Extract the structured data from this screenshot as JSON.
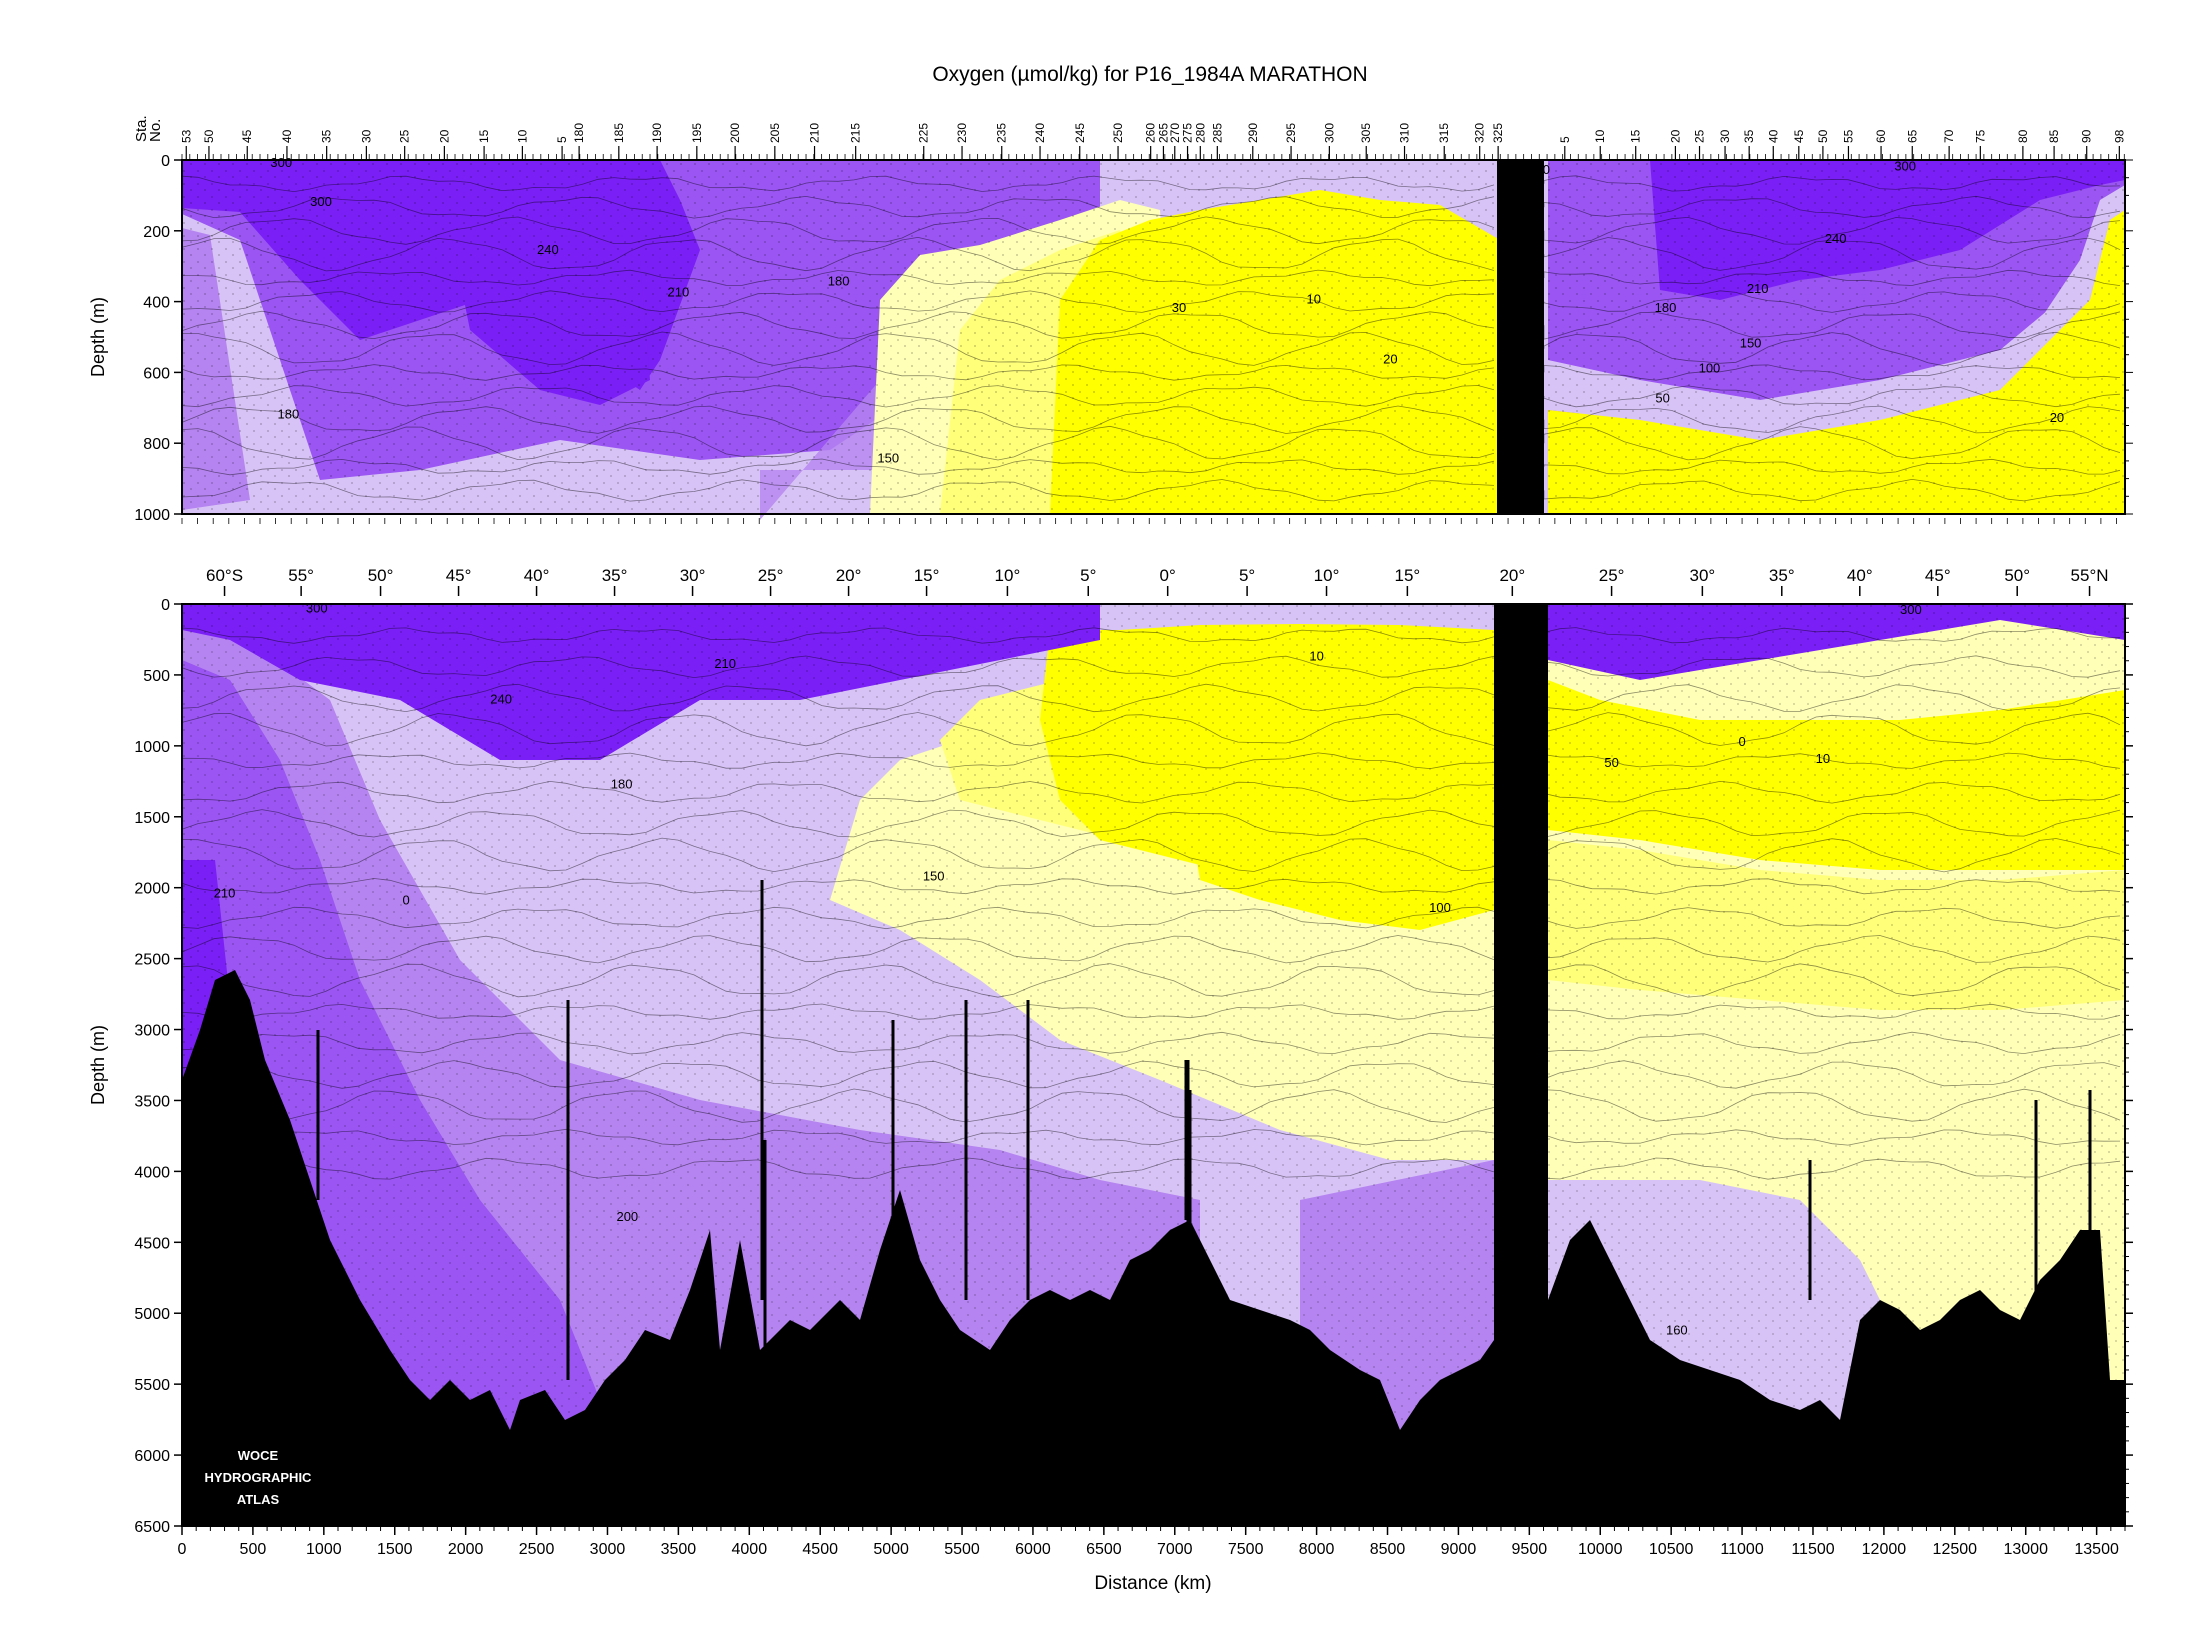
{
  "title": "Oxygen (µmol/kg) for P16_1984A MARATHON",
  "logo_text": [
    "WOCE",
    "HYDROGRAPHIC",
    "ATLAS"
  ],
  "colors": {
    "purple_dark": "#7A1FF5",
    "purple_mid": "#9A55F2",
    "purple_light": "#B584F0",
    "lavender": "#D8C3F6",
    "pale_yellow": "#FFFFB8",
    "light_yellow": "#FFFF7A",
    "yellow": "#FFFF00",
    "seafloor": "#000000"
  },
  "chart_data": [
    {
      "type": "heatmap",
      "panel": "upper",
      "variable": "Oxygen (µmol/kg)",
      "xlabel": "",
      "ylabel": "Depth (m)",
      "xlim": [
        0,
        13700
      ],
      "ylim": [
        1000,
        0
      ],
      "yticks": [
        0,
        200,
        400,
        600,
        800,
        1000
      ],
      "station_axis_label": [
        "Sta.",
        "No."
      ],
      "station_ticks_south": [
        {
          "label": "53",
          "km": 30
        },
        {
          "label": "50",
          "km": 190
        },
        {
          "label": "45",
          "km": 460
        },
        {
          "label": "40",
          "km": 740
        },
        {
          "label": "35",
          "km": 1020
        },
        {
          "label": "30",
          "km": 1300
        },
        {
          "label": "25",
          "km": 1570
        },
        {
          "label": "20",
          "km": 1850
        },
        {
          "label": "15",
          "km": 2130
        },
        {
          "label": "10",
          "km": 2400
        },
        {
          "label": "5",
          "km": 2680
        },
        {
          "label": "180",
          "km": 2800
        },
        {
          "label": "185",
          "km": 3080
        },
        {
          "label": "190",
          "km": 3350
        },
        {
          "label": "195",
          "km": 3630
        },
        {
          "label": "200",
          "km": 3900
        },
        {
          "label": "205",
          "km": 4180
        },
        {
          "label": "210",
          "km": 4460
        },
        {
          "label": "215",
          "km": 4750
        },
        {
          "label": "225",
          "km": 5230
        },
        {
          "label": "230",
          "km": 5500
        },
        {
          "label": "235",
          "km": 5780
        },
        {
          "label": "240",
          "km": 6050
        },
        {
          "label": "245",
          "km": 6330
        },
        {
          "label": "250",
          "km": 6600
        },
        {
          "label": "260",
          "km": 6830
        },
        {
          "label": "265",
          "km": 6920
        },
        {
          "label": "270",
          "km": 7000
        },
        {
          "label": "275",
          "km": 7090
        },
        {
          "label": "280",
          "km": 7180
        },
        {
          "label": "285",
          "km": 7300
        },
        {
          "label": "290",
          "km": 7550
        },
        {
          "label": "295",
          "km": 7820
        },
        {
          "label": "300",
          "km": 8090
        },
        {
          "label": "305",
          "km": 8350
        },
        {
          "label": "310",
          "km": 8620
        },
        {
          "label": "315",
          "km": 8900
        },
        {
          "label": "320",
          "km": 9150
        },
        {
          "label": "325",
          "km": 9280
        }
      ],
      "station_ticks_north": [
        {
          "label": "5",
          "km": 9750
        },
        {
          "label": "10",
          "km": 10000
        },
        {
          "label": "15",
          "km": 10250
        },
        {
          "label": "20",
          "km": 10530
        },
        {
          "label": "25",
          "km": 10700
        },
        {
          "label": "30",
          "km": 10880
        },
        {
          "label": "35",
          "km": 11050
        },
        {
          "label": "40",
          "km": 11220
        },
        {
          "label": "45",
          "km": 11400
        },
        {
          "label": "50",
          "km": 11570
        },
        {
          "label": "55",
          "km": 11750
        },
        {
          "label": "60",
          "km": 11980
        },
        {
          "label": "65",
          "km": 12200
        },
        {
          "label": "70",
          "km": 12460
        },
        {
          "label": "75",
          "km": 12680
        },
        {
          "label": "80",
          "km": 12980
        },
        {
          "label": "85",
          "km": 13200
        },
        {
          "label": "90",
          "km": 13430
        },
        {
          "label": "98",
          "km": 13660
        }
      ],
      "contour_labels": [
        {
          "text": "300",
          "km": 700,
          "depth": 20
        },
        {
          "text": "300",
          "km": 980,
          "depth": 130
        },
        {
          "text": "240",
          "km": 2580,
          "depth": 265
        },
        {
          "text": "210",
          "km": 3500,
          "depth": 385
        },
        {
          "text": "180",
          "km": 4630,
          "depth": 355
        },
        {
          "text": "180",
          "km": 750,
          "depth": 730
        },
        {
          "text": "150",
          "km": 4980,
          "depth": 855
        },
        {
          "text": "30",
          "km": 7030,
          "depth": 430
        },
        {
          "text": "10",
          "km": 7980,
          "depth": 405
        },
        {
          "text": "20",
          "km": 8520,
          "depth": 575
        },
        {
          "text": "0",
          "km": 9620,
          "depth": 40
        },
        {
          "text": "300",
          "km": 12150,
          "depth": 30
        },
        {
          "text": "240",
          "km": 11660,
          "depth": 235
        },
        {
          "text": "210",
          "km": 11110,
          "depth": 375
        },
        {
          "text": "180",
          "km": 10460,
          "depth": 430
        },
        {
          "text": "150",
          "km": 11060,
          "depth": 530
        },
        {
          "text": "100",
          "km": 10770,
          "depth": 600
        },
        {
          "text": "50",
          "km": 10440,
          "depth": 685
        },
        {
          "text": "20",
          "km": 13220,
          "depth": 740
        }
      ]
    },
    {
      "type": "heatmap",
      "panel": "lower",
      "variable": "Oxygen (µmol/kg)",
      "xlabel": "Distance (km)",
      "ylabel": "Depth (m)",
      "xlim": [
        0,
        13700
      ],
      "ylim": [
        6500,
        0
      ],
      "xticks": [
        0,
        500,
        1000,
        1500,
        2000,
        2500,
        3000,
        3500,
        4000,
        4500,
        5000,
        5500,
        6000,
        6500,
        7000,
        7500,
        8000,
        8500,
        9000,
        9500,
        10000,
        10500,
        11000,
        11500,
        12000,
        12500,
        13000,
        13500
      ],
      "yticks": [
        0,
        500,
        1000,
        1500,
        2000,
        2500,
        3000,
        3500,
        4000,
        4500,
        5000,
        5500,
        6000,
        6500
      ],
      "latitude_ticks": [
        {
          "label": "60°S",
          "km": 300
        },
        {
          "label": "55°",
          "km": 840
        },
        {
          "label": "50°",
          "km": 1400
        },
        {
          "label": "45°",
          "km": 1950
        },
        {
          "label": "40°",
          "km": 2500
        },
        {
          "label": "35°",
          "km": 3050
        },
        {
          "label": "30°",
          "km": 3600
        },
        {
          "label": "25°",
          "km": 4150
        },
        {
          "label": "20°",
          "km": 4700
        },
        {
          "label": "15°",
          "km": 5250
        },
        {
          "label": "10°",
          "km": 5820
        },
        {
          "label": "5°",
          "km": 6390
        },
        {
          "label": "0°",
          "km": 6950
        },
        {
          "label": "5°",
          "km": 7510
        },
        {
          "label": "10°",
          "km": 8070
        },
        {
          "label": "15°",
          "km": 8640
        },
        {
          "label": "20°",
          "km": 9380
        },
        {
          "label": "25°",
          "km": 10080
        },
        {
          "label": "30°",
          "km": 10720
        },
        {
          "label": "35°",
          "km": 11280
        },
        {
          "label": "40°",
          "km": 11830
        },
        {
          "label": "45°",
          "km": 12380
        },
        {
          "label": "50°",
          "km": 12940
        },
        {
          "label": "55°N",
          "km": 13450
        }
      ],
      "contour_labels": [
        {
          "text": "300",
          "km": 950,
          "depth": 60
        },
        {
          "text": "240",
          "km": 2250,
          "depth": 700
        },
        {
          "text": "210",
          "km": 3830,
          "depth": 450
        },
        {
          "text": "180",
          "km": 3100,
          "depth": 1300
        },
        {
          "text": "210",
          "km": 300,
          "depth": 2070
        },
        {
          "text": "0",
          "km": 1580,
          "depth": 2120
        },
        {
          "text": "150",
          "km": 5300,
          "depth": 1950
        },
        {
          "text": "10",
          "km": 8000,
          "depth": 400
        },
        {
          "text": "100",
          "km": 8870,
          "depth": 2170
        },
        {
          "text": "50",
          "km": 10080,
          "depth": 1150
        },
        {
          "text": "10",
          "km": 11570,
          "depth": 1120
        },
        {
          "text": "0",
          "km": 11000,
          "depth": 1000
        },
        {
          "text": "300",
          "km": 12190,
          "depth": 70
        },
        {
          "text": "200",
          "km": 3140,
          "depth": 4350
        },
        {
          "text": "160",
          "km": 10540,
          "depth": 5150
        }
      ]
    }
  ]
}
